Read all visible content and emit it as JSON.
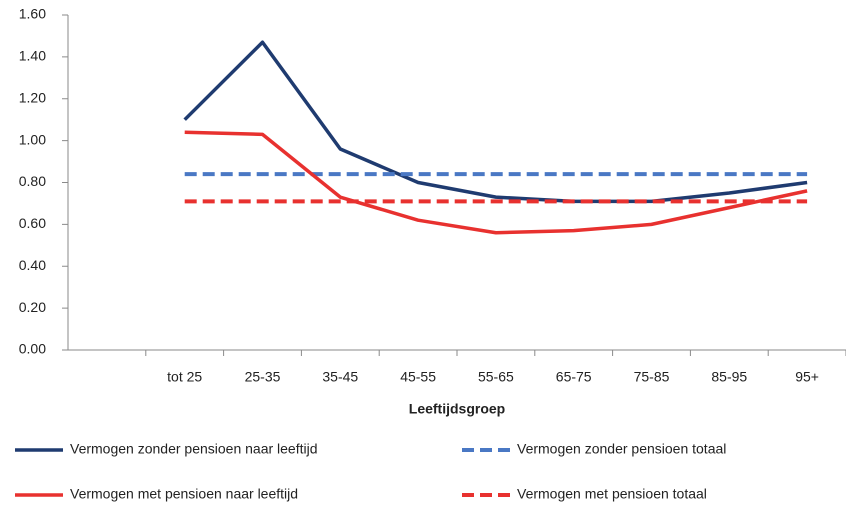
{
  "chart_data": {
    "type": "line",
    "x_label": "Leeftijdsgroep",
    "categories": [
      null,
      "tot 25",
      "25-35",
      "35-45",
      "45-55",
      "55-65",
      "65-75",
      "75-85",
      "85-95",
      "95+"
    ],
    "series": [
      {
        "name": "Vermogen zonder pensioen naar leeftijd",
        "color": "#1f3b70",
        "dash": false,
        "values": [
          null,
          1.1,
          1.47,
          0.96,
          0.8,
          0.73,
          0.71,
          0.71,
          0.75,
          0.8
        ]
      },
      {
        "name": "Vermogen zonder pensioen totaal",
        "color": "#4a78c4",
        "dash": true,
        "values": [
          null,
          0.84,
          0.84,
          0.84,
          0.84,
          0.84,
          0.84,
          0.84,
          0.84,
          0.84
        ]
      },
      {
        "name": "Vermogen met pensioen naar leeftijd",
        "color": "#e8312f",
        "dash": false,
        "values": [
          null,
          1.04,
          1.03,
          0.73,
          0.62,
          0.56,
          0.57,
          0.6,
          0.68,
          0.76
        ]
      },
      {
        "name": "Vermogen met pensioen totaal",
        "color": "#e8312f",
        "dash": true,
        "values": [
          null,
          0.71,
          0.71,
          0.71,
          0.71,
          0.71,
          0.71,
          0.71,
          0.71,
          0.71
        ]
      }
    ],
    "ylim": [
      0,
      1.6
    ],
    "yticks": [
      {
        "value": 0,
        "label": "0.00"
      },
      {
        "value": 0.2,
        "label": "0.20"
      },
      {
        "value": 0.4,
        "label": "0.40"
      },
      {
        "value": 0.6,
        "label": "0.60"
      },
      {
        "value": 0.8,
        "label": "0.80"
      },
      {
        "value": 1.0,
        "label": "1.00"
      },
      {
        "value": 1.2,
        "label": "1.20"
      },
      {
        "value": 1.4,
        "label": "1.40"
      },
      {
        "value": 1.6,
        "label": "1.60"
      }
    ],
    "grid": false
  }
}
